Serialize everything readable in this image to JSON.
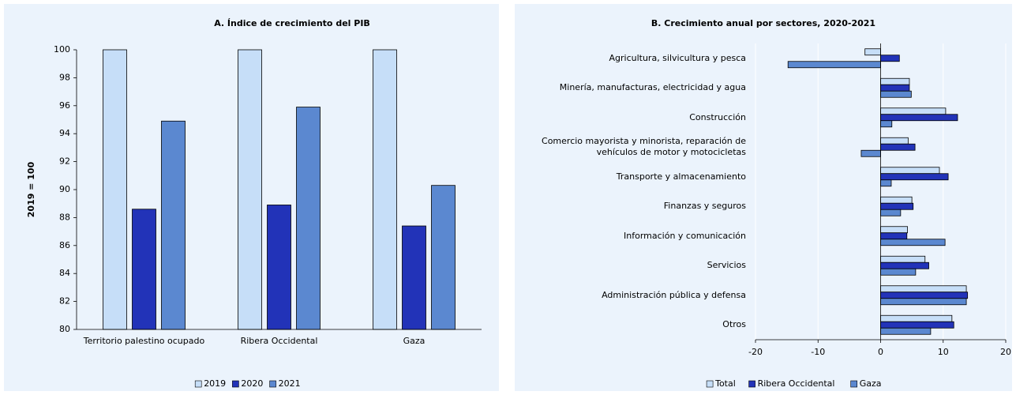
{
  "chart_data": [
    {
      "type": "bar",
      "title": "A. Índice de crecimiento del PIB",
      "ylabel": "2019 = 100",
      "categories": [
        "Territorio palestino ocupado",
        "Ribera Occidental",
        "Gaza"
      ],
      "series": [
        {
          "name": "2019",
          "color": "#c6def8",
          "values": [
            100,
            100,
            100
          ]
        },
        {
          "name": "2020",
          "color": "#2233b8",
          "values": [
            88.6,
            88.9,
            87.4
          ]
        },
        {
          "name": "2021",
          "color": "#5b88d0",
          "values": [
            94.9,
            95.9,
            90.3
          ]
        }
      ],
      "ylim": [
        80,
        100
      ],
      "yticks": [
        80,
        82,
        84,
        86,
        88,
        90,
        92,
        94,
        96,
        98,
        100
      ],
      "grid": false,
      "legend": "bottom"
    },
    {
      "type": "barh",
      "title": "B. Crecimiento anual por sectores, 2020-2021",
      "categories": [
        "Agricultura, silvicultura y pesca",
        "Minería, manufacturas, electricidad y agua",
        "Construcción",
        "Comercio mayorista y minorista, reparación de vehículos de motor y motocicletas",
        "Transporte y almacenamiento",
        "Finanzas y seguros",
        "Información y comunicación",
        "Servicios",
        "Administración pública y defensa",
        "Otros"
      ],
      "series": [
        {
          "name": "Total",
          "color": "#c6def8",
          "values": [
            -2.5,
            4.6,
            10.4,
            4.4,
            9.4,
            5.0,
            4.3,
            7.1,
            13.7,
            11.4
          ]
        },
        {
          "name": "Ribera Occidental",
          "color": "#2233b8",
          "values": [
            3.0,
            4.6,
            12.3,
            5.5,
            10.8,
            5.2,
            4.2,
            7.7,
            13.9,
            11.7
          ]
        },
        {
          "name": "Gaza",
          "color": "#5b88d0",
          "values": [
            -14.8,
            4.9,
            1.8,
            -3.1,
            1.7,
            3.2,
            10.3,
            5.6,
            13.7,
            8.0
          ]
        }
      ],
      "xlim": [
        -20,
        20
      ],
      "xticks": [
        -20,
        -10,
        0,
        10,
        20
      ],
      "grid": true,
      "legend": "bottom"
    }
  ]
}
